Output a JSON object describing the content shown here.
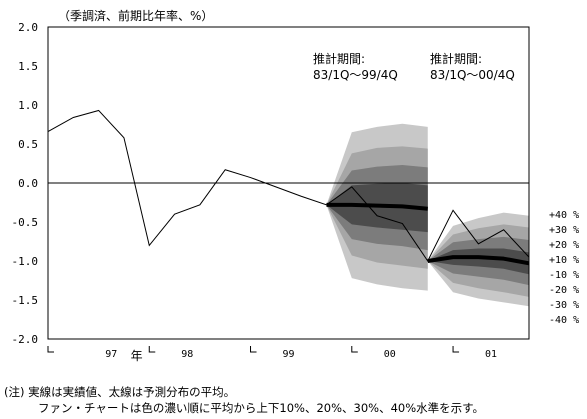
{
  "chart_data": {
    "type": "line",
    "unit_label": "（季調済、前期比年率、%）",
    "ylim": [
      -2.0,
      2.0
    ],
    "y_ticks": [
      "2.0",
      "1.5",
      "1.0",
      "0.5",
      "0.0",
      "-0.5",
      "-1.0",
      "-1.5",
      "-2.0"
    ],
    "x_labels": [
      {
        "label": "97",
        "q": 5
      },
      {
        "label": "年",
        "q": 7
      },
      {
        "label": "98",
        "q": 11
      },
      {
        "label": "99",
        "q": 19
      },
      {
        "label": "00",
        "q": 27
      },
      {
        "label": "01",
        "q": 35
      }
    ],
    "actual": {
      "x": [
        0,
        2,
        4,
        6,
        8,
        10,
        12,
        14,
        16,
        18,
        20,
        22,
        24,
        26,
        28,
        30,
        32,
        34,
        36,
        38
      ],
      "values": [
        0.66,
        0.84,
        0.93,
        0.58,
        -0.8,
        -0.4,
        -0.28,
        0.17,
        0.07,
        -0.05,
        -0.17,
        -0.28,
        -0.05,
        -0.42,
        -0.52,
        -1.0,
        -0.35,
        -0.78,
        -0.6,
        -0.95
      ]
    },
    "forecast_1": {
      "annotation": [
        "推計期間:",
        "83/1Q～99/4Q"
      ],
      "x": [
        22,
        24,
        26,
        28,
        30
      ],
      "mean": [
        -0.28,
        -0.28,
        -0.29,
        -0.3,
        -0.33
      ],
      "bands": [
        {
          "level": "40",
          "upper": [
            -0.28,
            0.65,
            0.72,
            0.76,
            0.72
          ],
          "lower": [
            -0.28,
            -1.22,
            -1.3,
            -1.35,
            -1.38
          ]
        },
        {
          "level": "30",
          "upper": [
            -0.28,
            0.38,
            0.45,
            0.47,
            0.44
          ],
          "lower": [
            -0.28,
            -0.93,
            -1.02,
            -1.06,
            -1.1
          ]
        },
        {
          "level": "20",
          "upper": [
            -0.28,
            0.16,
            0.21,
            0.23,
            0.2
          ],
          "lower": [
            -0.28,
            -0.72,
            -0.78,
            -0.81,
            -0.86
          ]
        },
        {
          "level": "10",
          "upper": [
            -0.28,
            -0.03,
            -0.01,
            0.0,
            -0.03
          ],
          "lower": [
            -0.28,
            -0.53,
            -0.57,
            -0.6,
            -0.63
          ]
        }
      ]
    },
    "forecast_2": {
      "annotation": [
        "推計期間:",
        "83/1Q～00/4Q"
      ],
      "x": [
        30,
        32,
        34,
        36,
        38
      ],
      "mean": [
        -1.0,
        -0.95,
        -0.95,
        -0.97,
        -1.03
      ],
      "bands": [
        {
          "level": "40",
          "upper": [
            -1.0,
            -0.55,
            -0.45,
            -0.38,
            -0.42
          ],
          "lower": [
            -1.0,
            -1.4,
            -1.48,
            -1.53,
            -1.58
          ]
        },
        {
          "level": "30",
          "upper": [
            -1.0,
            -0.66,
            -0.58,
            -0.53,
            -0.57
          ],
          "lower": [
            -1.0,
            -1.28,
            -1.35,
            -1.4,
            -1.46
          ]
        },
        {
          "level": "20",
          "upper": [
            -1.0,
            -0.76,
            -0.72,
            -0.69,
            -0.73
          ],
          "lower": [
            -1.0,
            -1.16,
            -1.2,
            -1.24,
            -1.31
          ]
        },
        {
          "level": "10",
          "upper": [
            -1.0,
            -0.86,
            -0.84,
            -0.84,
            -0.89
          ],
          "lower": [
            -1.0,
            -1.05,
            -1.07,
            -1.1,
            -1.17
          ]
        }
      ]
    },
    "band_colors": {
      "40": "#c8c8c8",
      "30": "#a6a6a6",
      "20": "#7c7c7c",
      "10": "#4c4c4c"
    },
    "legend": [
      "+40 %",
      "+30 %",
      "+20 %",
      "+10 %",
      "-10 %",
      "-20 %",
      "-30 %",
      "-40 %"
    ]
  },
  "notes": {
    "line1": "(注) 実線は実績値、太線は予測分布の平均。",
    "line2": "ファン・チャートは色の濃い順に平均から上下10%、20%、30%、40%水準を示す。"
  }
}
